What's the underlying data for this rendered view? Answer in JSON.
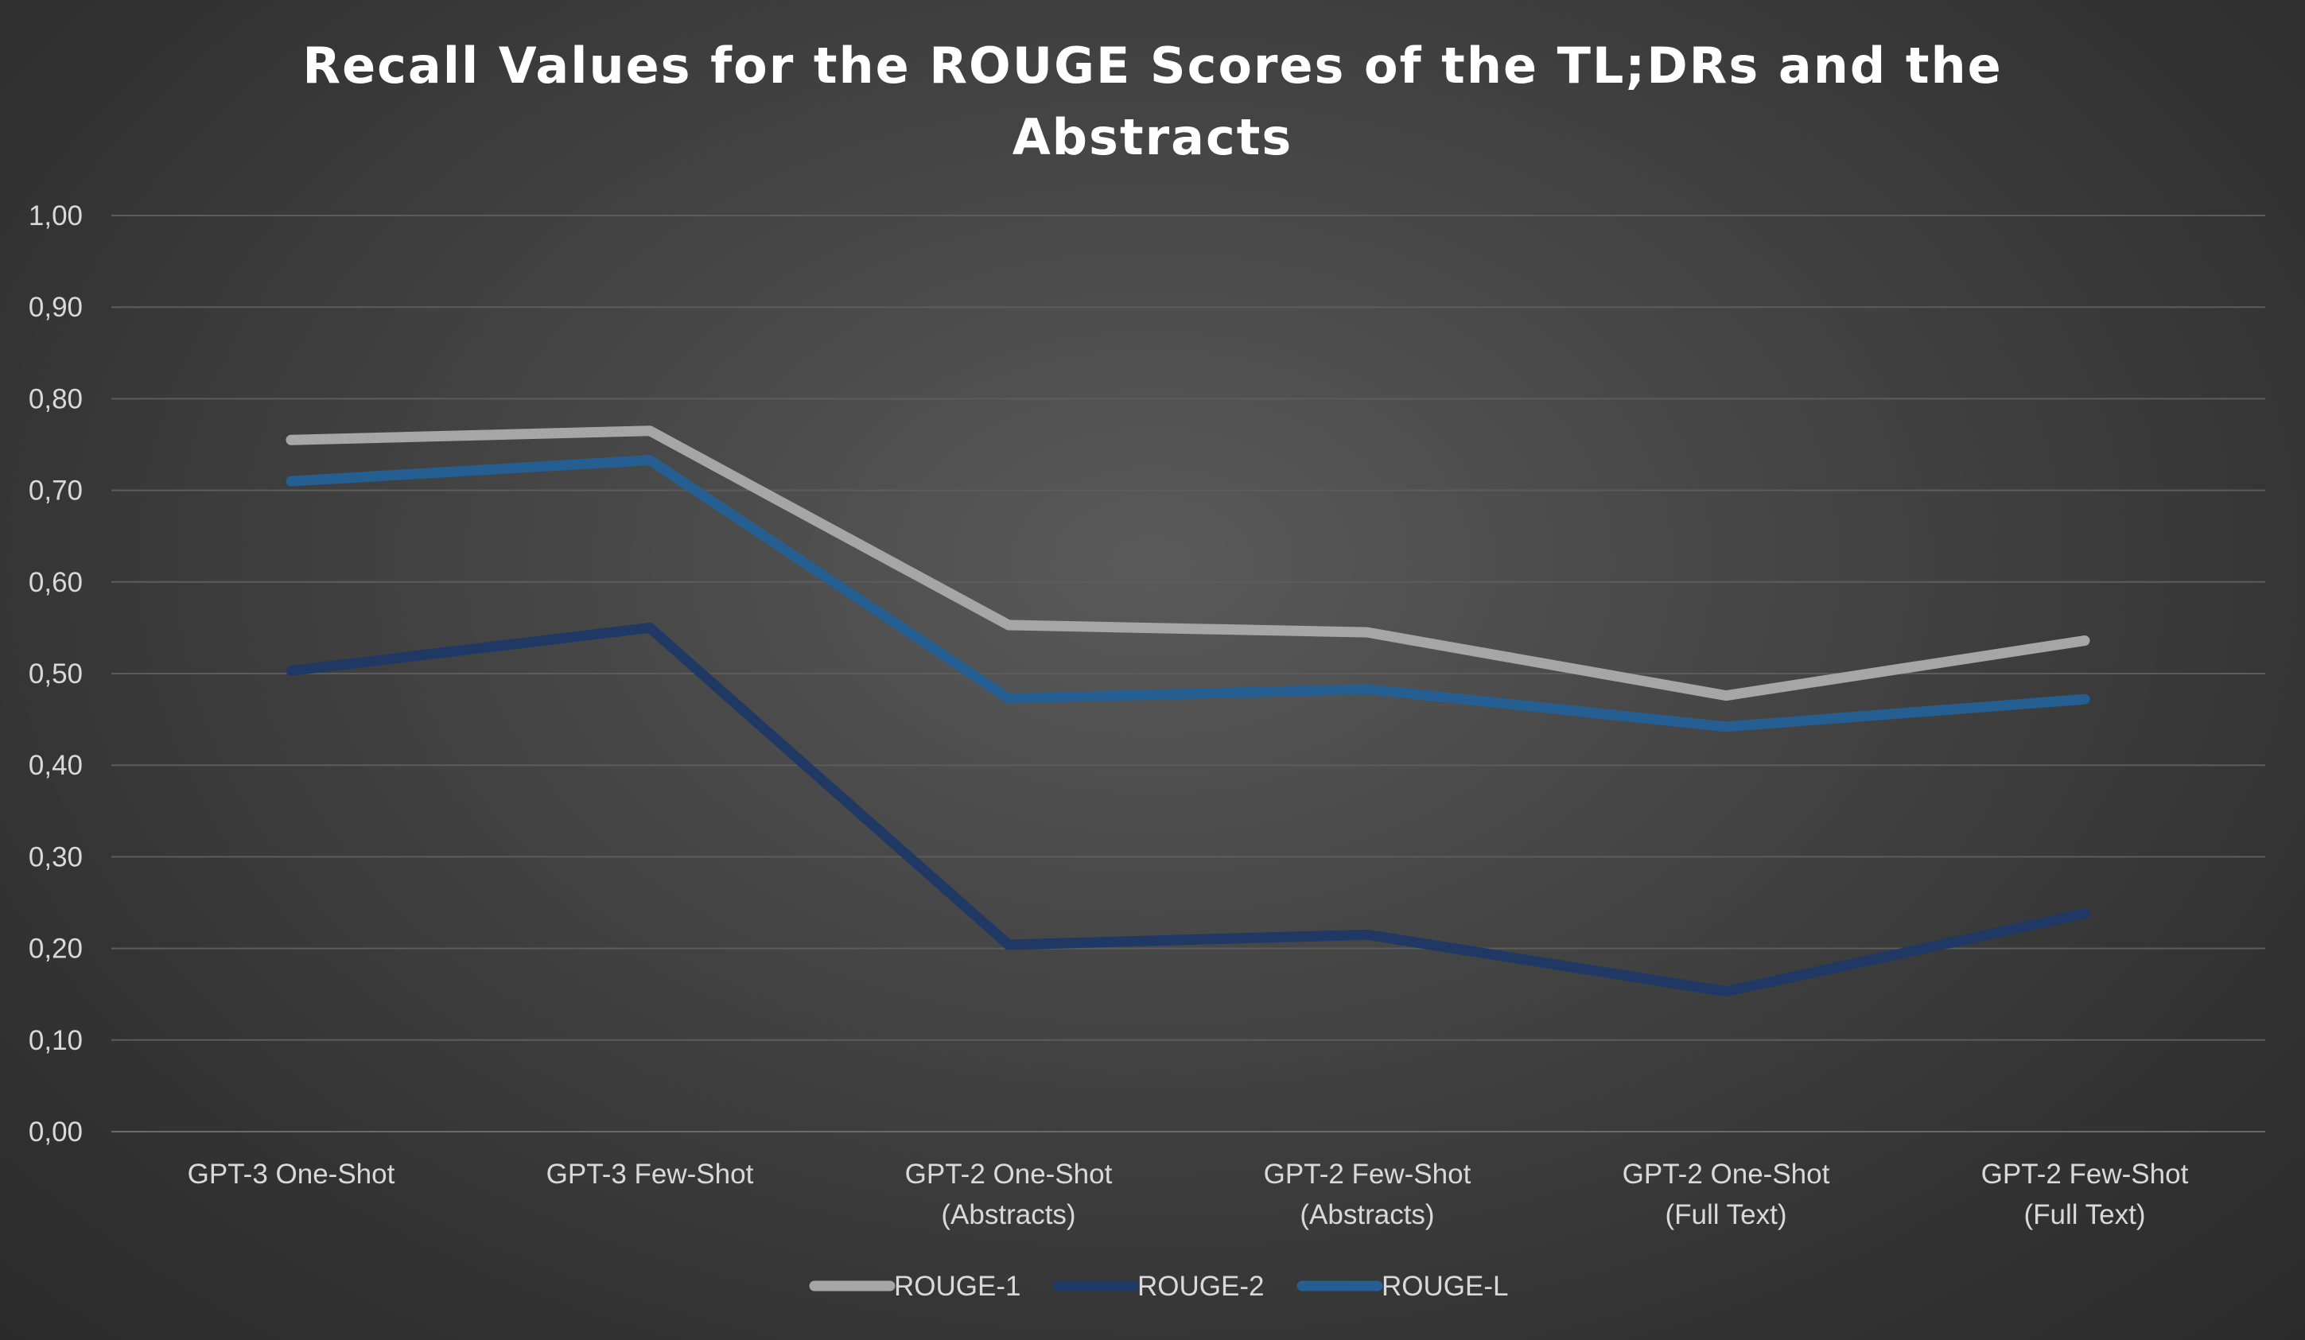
{
  "chart_data": {
    "type": "line",
    "title_lines": [
      "Recall Values for the ROUGE Scores of the TL;DRs and the",
      "Abstracts"
    ],
    "categories": [
      [
        "GPT-3 One-Shot"
      ],
      [
        "GPT-3 Few-Shot"
      ],
      [
        "GPT-2 One-Shot",
        "(Abstracts)"
      ],
      [
        "GPT-2 Few-Shot",
        "(Abstracts)"
      ],
      [
        "GPT-2 One-Shot",
        "(Full Text)"
      ],
      [
        "GPT-2 Few-Shot",
        "(Full Text)"
      ]
    ],
    "series": [
      {
        "name": "ROUGE-1",
        "color": "#a6a6a6",
        "values": [
          0.755,
          0.765,
          0.553,
          0.545,
          0.476,
          0.536
        ]
      },
      {
        "name": "ROUGE-2",
        "color": "#203864",
        "values": [
          0.503,
          0.55,
          0.204,
          0.215,
          0.153,
          0.238
        ]
      },
      {
        "name": "ROUGE-L",
        "color": "#255e91",
        "values": [
          0.71,
          0.733,
          0.473,
          0.483,
          0.442,
          0.472
        ]
      }
    ],
    "ylim": [
      0,
      1
    ],
    "y_ticks": [
      "0,00",
      "0,10",
      "0,20",
      "0,30",
      "0,40",
      "0,50",
      "0,60",
      "0,70",
      "0,80",
      "0,90",
      "1,00"
    ],
    "grid": true,
    "legend_position": "bottom"
  }
}
